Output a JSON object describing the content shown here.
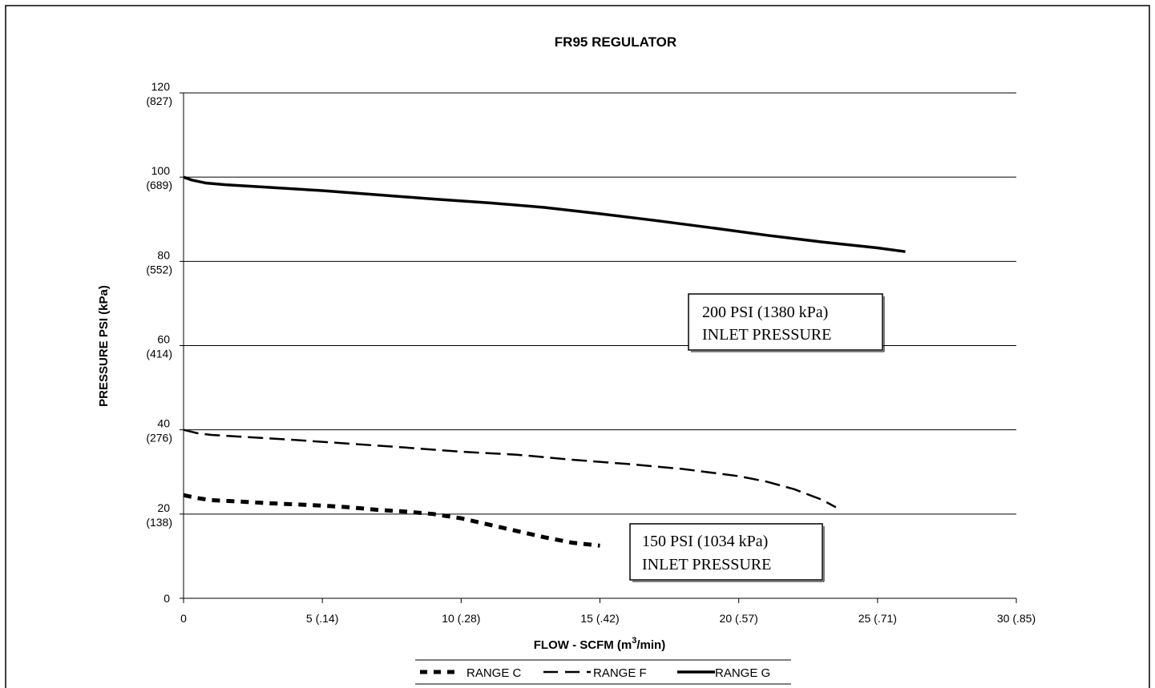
{
  "chart_data": {
    "type": "line",
    "title": "FR95 REGULATOR",
    "xlabel": "FLOW - SCFM (m",
    "xlabel_sup": "3",
    "xlabel_tail": "/min)",
    "ylabel": "PRESSURE PSI (kPa)",
    "xlim": [
      0,
      30
    ],
    "ylim": [
      0,
      120
    ],
    "grid": "horizontal",
    "legend_position": "bottom-center",
    "x_ticks": [
      {
        "value": 0,
        "label": "0"
      },
      {
        "value": 5,
        "label": "5 (.14)"
      },
      {
        "value": 10,
        "label": "10 (.28)"
      },
      {
        "value": 15,
        "label": "15 (.42)"
      },
      {
        "value": 20,
        "label": "20 (.57)"
      },
      {
        "value": 25,
        "label": "25 (.71)"
      },
      {
        "value": 30,
        "label": "30 (.85)"
      }
    ],
    "y_ticks": [
      {
        "value": 0,
        "label": "0",
        "sublabel": ""
      },
      {
        "value": 20,
        "label": "20",
        "sublabel": "(138)"
      },
      {
        "value": 40,
        "label": "40",
        "sublabel": "(276)"
      },
      {
        "value": 60,
        "label": "60",
        "sublabel": "(414)"
      },
      {
        "value": 80,
        "label": "80",
        "sublabel": "(552)"
      },
      {
        "value": 100,
        "label": "100",
        "sublabel": "(689)"
      },
      {
        "value": 120,
        "label": "120",
        "sublabel": "(827)"
      }
    ],
    "series": [
      {
        "name": "RANGE C",
        "style": "dotted-heavy",
        "x": [
          0,
          0.5,
          1,
          2,
          3,
          4,
          5,
          6,
          7,
          8,
          9,
          10,
          11,
          12,
          13,
          14,
          15
        ],
        "y": [
          24.5,
          23.8,
          23.3,
          23.0,
          22.6,
          22.3,
          22.0,
          21.6,
          21.0,
          20.6,
          20.0,
          19.0,
          17.5,
          16.0,
          14.5,
          13.2,
          12.5
        ]
      },
      {
        "name": "RANGE F",
        "style": "dashed",
        "x": [
          0,
          0.5,
          1,
          2,
          4,
          6,
          8,
          10,
          12,
          14,
          16,
          18,
          20,
          21,
          22,
          23,
          23.5
        ],
        "y": [
          40,
          39.2,
          38.8,
          38.4,
          37.6,
          36.7,
          35.8,
          34.8,
          34.1,
          32.9,
          31.9,
          30.7,
          29.0,
          27.7,
          25.9,
          23.4,
          21.6
        ]
      },
      {
        "name": "RANGE G",
        "style": "solid",
        "x": [
          0,
          0.3,
          0.8,
          1.5,
          3,
          5,
          7,
          9,
          11,
          13,
          15,
          17,
          19,
          21,
          23,
          25,
          26
        ],
        "y": [
          100,
          99.3,
          98.6,
          98.2,
          97.6,
          96.8,
          95.8,
          94.8,
          93.9,
          92.8,
          91.3,
          89.7,
          88.0,
          86.2,
          84.6,
          83.2,
          82.3
        ]
      }
    ],
    "annotations": [
      {
        "line1": "200 PSI (1380 kPa)",
        "line2": "INLET PRESSURE"
      },
      {
        "line1": "150 PSI (1034 kPa)",
        "line2": "INLET PRESSURE"
      }
    ],
    "colors": {
      "line": "#000000",
      "grid": "#000000",
      "background": "#ffffff"
    }
  }
}
